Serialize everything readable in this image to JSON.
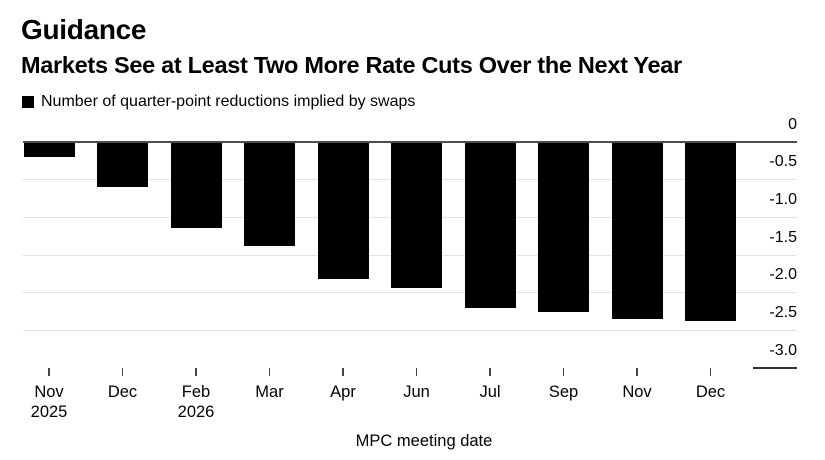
{
  "header": {
    "eyebrow": "Guidance",
    "title": "Markets See at Least Two More Rate Cuts Over the Next Year"
  },
  "legend": {
    "label": "Number of quarter-point reductions implied by swaps",
    "marker_color": "#000000"
  },
  "chart_data": {
    "type": "bar",
    "title": "Guidance",
    "subtitle": "Markets See at Least Two More Rate Cuts Over the Next Year",
    "series_label": "Number of quarter-point reductions implied by swaps",
    "categories": [
      "Nov 2025",
      "Dec",
      "Feb 2026",
      "Mar",
      "Apr",
      "Jun",
      "Jul",
      "Sep",
      "Nov",
      "Dec"
    ],
    "x_tick_labels": [
      {
        "month": "Nov",
        "year": "2025"
      },
      {
        "month": "Dec",
        "year": ""
      },
      {
        "month": "Feb",
        "year": "2026"
      },
      {
        "month": "Mar",
        "year": ""
      },
      {
        "month": "Apr",
        "year": ""
      },
      {
        "month": "Jun",
        "year": ""
      },
      {
        "month": "Jul",
        "year": ""
      },
      {
        "month": "Sep",
        "year": ""
      },
      {
        "month": "Nov",
        "year": ""
      },
      {
        "month": "Dec",
        "year": ""
      }
    ],
    "values": [
      -0.21,
      -0.61,
      -1.15,
      -1.39,
      -1.82,
      -1.94,
      -2.21,
      -2.26,
      -2.36,
      -2.38
    ],
    "xlabel": "MPC meeting date",
    "ylabel": "",
    "y_ticks": [
      0,
      -0.5,
      -1.0,
      -1.5,
      -2.0,
      -2.5,
      -3.0
    ],
    "y_tick_labels": [
      "0",
      "-0.5",
      "-1.0",
      "-1.5",
      "-2.0",
      "-2.5",
      "-3.0"
    ],
    "ylim": [
      0,
      -3.0
    ],
    "grid": "horizontal",
    "legend_position": "top-left",
    "bar_color": "#000000",
    "colors": {
      "background": "#ffffff",
      "text": "#000000",
      "grid": "#e3e3e3",
      "zero_line": "#4d4d4d",
      "axis_tick": "#444444",
      "bottom_tick_line": "#333333"
    }
  }
}
